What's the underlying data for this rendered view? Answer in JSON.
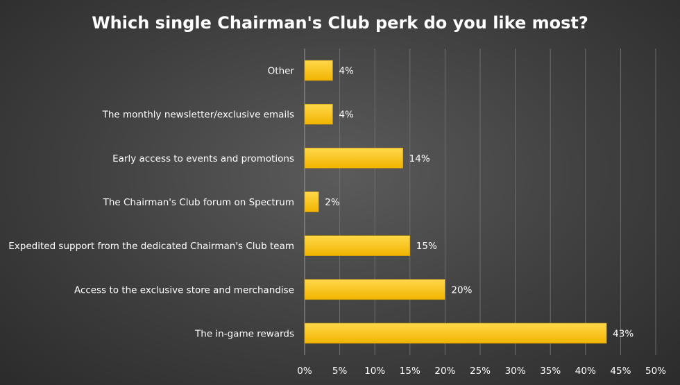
{
  "chart_data": {
    "type": "bar",
    "orientation": "horizontal",
    "title": "Which single Chairman's Club perk do you like most?",
    "categories": [
      "Other",
      "The monthly newsletter/exclusive emails",
      "Early access to events and promotions",
      "The Chairman's Club forum on Spectrum",
      "Expedited support from the dedicated Chairman's Club team",
      "Access to the exclusive store and merchandise",
      "The in-game rewards"
    ],
    "values": [
      4,
      4,
      14,
      2,
      15,
      20,
      43
    ],
    "data_labels": [
      "4%",
      "4%",
      "14%",
      "2%",
      "15%",
      "20%",
      "43%"
    ],
    "x_ticks": [
      "0%",
      "5%",
      "10%",
      "15%",
      "20%",
      "25%",
      "30%",
      "35%",
      "40%",
      "45%",
      "50%"
    ],
    "xlim": [
      0,
      50
    ],
    "grid": true,
    "legend": "none",
    "bar_color": "#ffc000",
    "bar_color_light": "#ffd84a"
  }
}
